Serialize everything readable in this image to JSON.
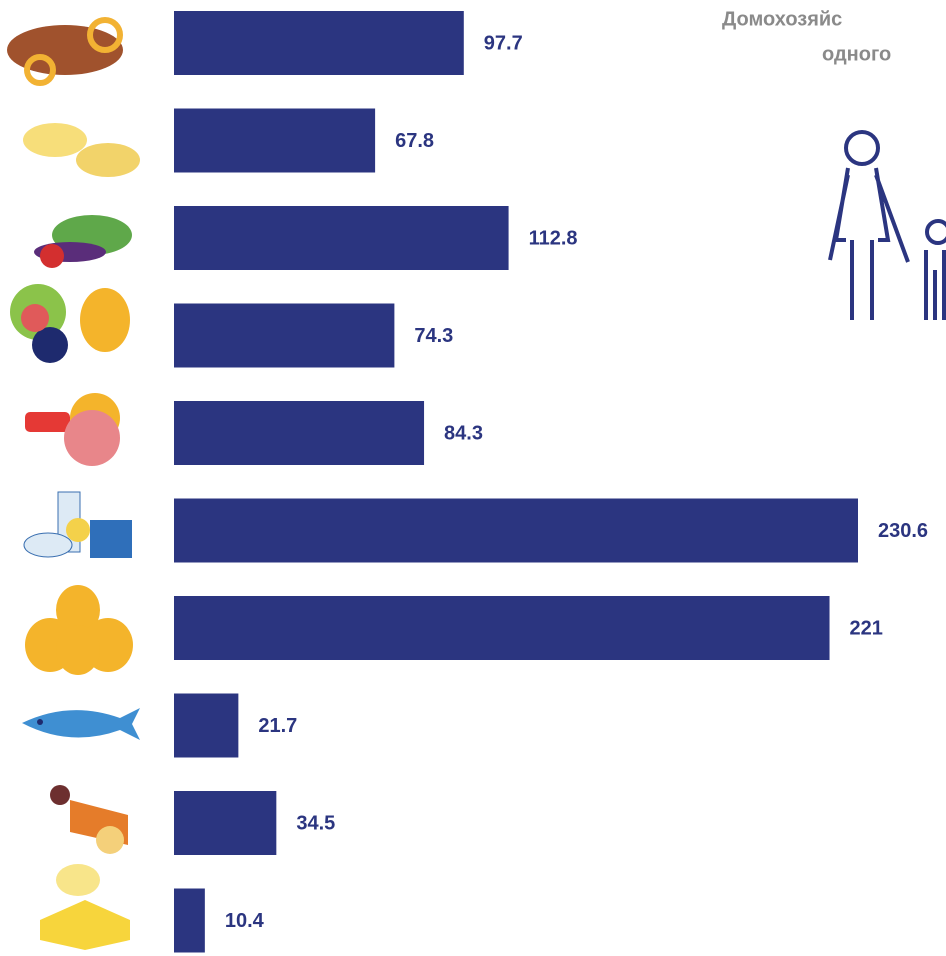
{
  "chart_data": {
    "type": "bar",
    "orientation": "horizontal",
    "title_lines": [
      "Домохозяйс",
      "одного"
    ],
    "categories": [
      null,
      null,
      null,
      null,
      null,
      null,
      null,
      null,
      null,
      null
    ],
    "values": [
      97.7,
      67.8,
      112.8,
      74.3,
      84.3,
      230.6,
      221,
      21.7,
      34.5,
      10.4
    ],
    "color": "#2b3580"
  }
}
